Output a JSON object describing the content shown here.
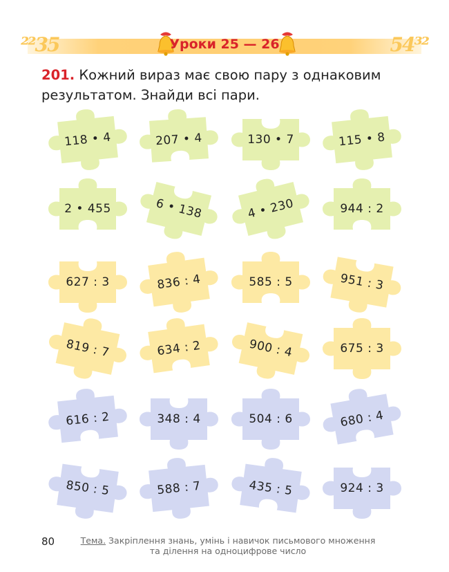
{
  "header": {
    "title": "Уроки 25 — 26",
    "digits_left": "²²35",
    "digits_right": "54³²"
  },
  "task": {
    "number": "201.",
    "text": "Кожний вираз має свою пару з однаковим резуль­татом. Знайди всі пари."
  },
  "colors": {
    "green": "#e5f0b0",
    "yellow": "#fde9a4",
    "blue": "#d3d8f2",
    "accent": "#d9232a"
  },
  "puzzles": [
    [
      "118 • 4",
      "207 • 4",
      "130 • 7",
      "115 • 8"
    ],
    [
      "2 • 455",
      "6 • 138",
      "4 • 230",
      "944 : 2"
    ],
    [
      "627 : 3",
      "836 : 4",
      "585 : 5",
      "951 : 3"
    ],
    [
      "819 : 7",
      "634 : 2",
      "900 : 4",
      "675 : 3"
    ],
    [
      "616 : 2",
      "348 : 4",
      "504 : 6",
      "680 : 4"
    ],
    [
      "850 : 5",
      "588 : 7",
      "435 : 5",
      "924 : 3"
    ]
  ],
  "footer": {
    "page_number": "80",
    "label": "Тема.",
    "line1": "Закріплення знань, умінь і навичок письмового множення",
    "line2": "та ділення на одноцифрове число"
  }
}
